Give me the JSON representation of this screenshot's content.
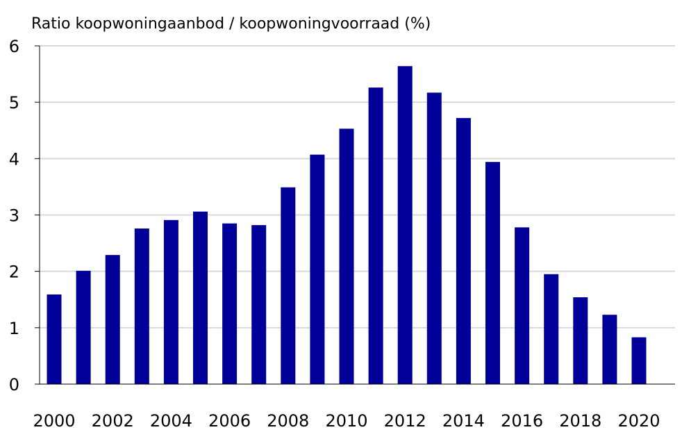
{
  "chart_data": {
    "type": "bar",
    "title": "Ratio koopwoningaanbod / koopwoningvoorraad (%)",
    "xlabel": "",
    "ylabel": "",
    "categories": [
      "2000",
      "2001",
      "2002",
      "2003",
      "2004",
      "2005",
      "2006",
      "2007",
      "2008",
      "2009",
      "2010",
      "2011",
      "2012",
      "2013",
      "2014",
      "2015",
      "2016",
      "2017",
      "2018",
      "2019",
      "2020"
    ],
    "values": [
      1.59,
      2.01,
      2.29,
      2.76,
      2.91,
      3.06,
      2.85,
      2.82,
      3.49,
      4.07,
      4.53,
      5.26,
      5.64,
      5.17,
      4.72,
      3.94,
      2.78,
      1.95,
      1.54,
      1.23,
      0.83
    ],
    "x_tick_labels": [
      "2000",
      "2002",
      "2004",
      "2006",
      "2008",
      "2010",
      "2012",
      "2014",
      "2016",
      "2018",
      "2020"
    ],
    "y_tick_labels": [
      "0",
      "1",
      "2",
      "3",
      "4",
      "5",
      "6"
    ],
    "ylim": [
      0,
      6
    ],
    "grid": "horizontal",
    "legend": "none",
    "bar_color": "#000099",
    "grid_color": "#d9d9d9"
  }
}
